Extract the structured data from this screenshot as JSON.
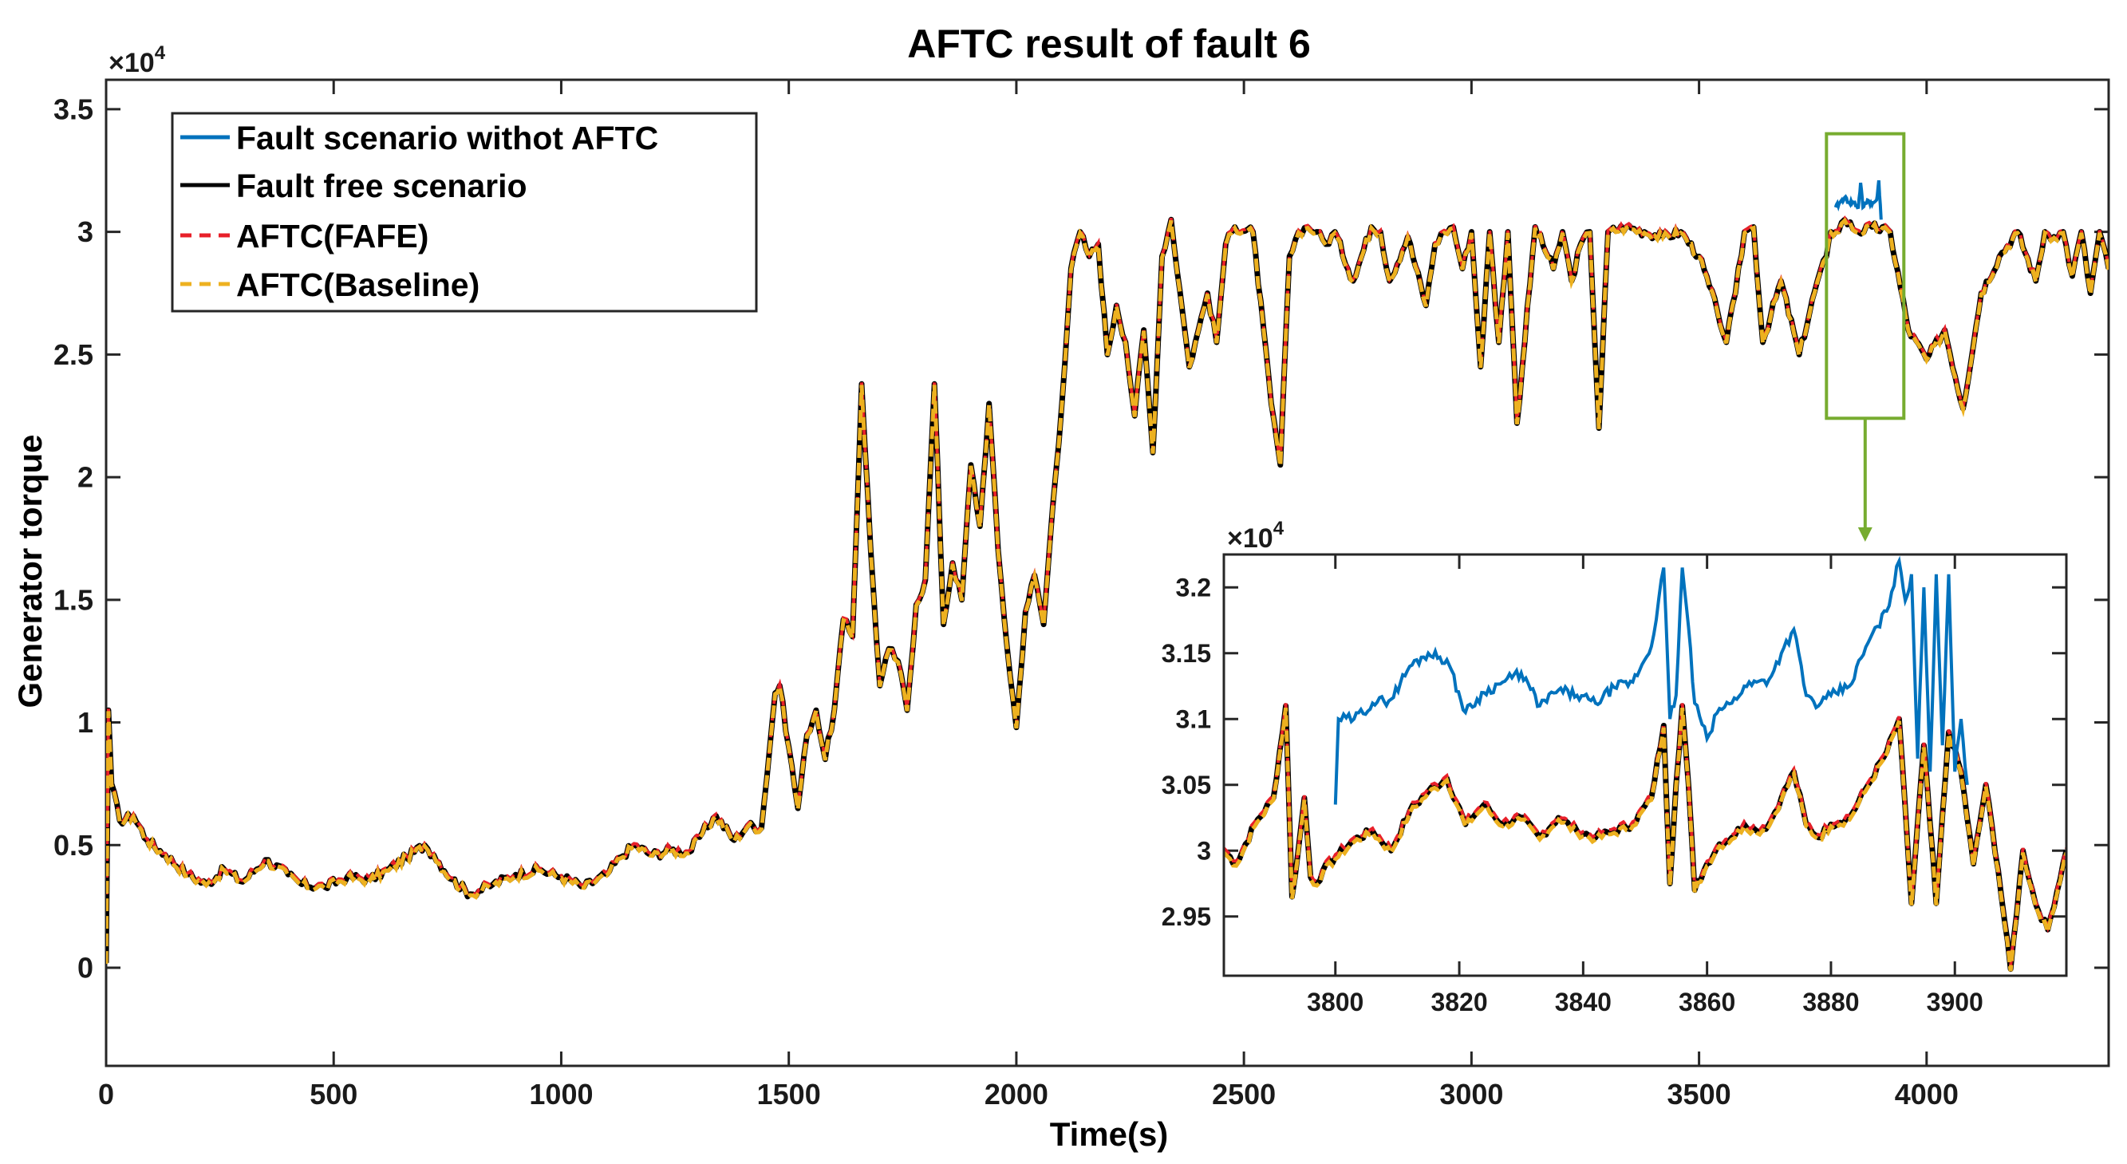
{
  "chart_data": [
    {
      "type": "line",
      "title": "AFTC result of fault 6",
      "xlabel": "Time(s)",
      "ylabel": "Generator torque",
      "exponent_label": "×10",
      "exponent_power": "4",
      "xlim": [
        0,
        4400
      ],
      "ylim": [
        -0.4,
        3.62
      ],
      "x_ticks": [
        0,
        500,
        1000,
        1500,
        2000,
        2500,
        3000,
        3500,
        4000
      ],
      "x_tick_labels": [
        "0",
        "500",
        "1000",
        "1500",
        "2000",
        "2500",
        "3000",
        "3500",
        "4000"
      ],
      "y_ticks": [
        0,
        0.5,
        1,
        1.5,
        2,
        2.5,
        3,
        3.5
      ],
      "y_tick_labels": [
        "0",
        "0.5",
        "1",
        "1.5",
        "2",
        "2.5",
        "3",
        "3.5"
      ],
      "legend": {
        "location": "top-left",
        "entries": [
          {
            "name": "Fault scenario withot AFTC",
            "color": "#0072BD",
            "style": "solid"
          },
          {
            "name": "Fault free scenario",
            "color": "#000000",
            "style": "solid"
          },
          {
            "name": "AFTC(FAFE)",
            "color": "#E8202A",
            "style": "dashed"
          },
          {
            "name": "AFTC(Baseline)",
            "color": "#EDB120",
            "style": "dashed"
          }
        ]
      },
      "zoom_box": {
        "x_range": [
          3780,
          3950
        ],
        "y_range": [
          2.24,
          3.4
        ],
        "color": "#77AC30"
      },
      "series": [
        {
          "name": "Fault free scenario",
          "x": [
            0,
            5,
            12,
            30,
            60,
            90,
            130,
            180,
            220,
            260,
            300,
            350,
            400,
            430,
            480,
            530,
            580,
            620,
            660,
            700,
            720,
            760,
            800,
            850,
            900,
            950,
            1000,
            1050,
            1100,
            1130,
            1160,
            1200,
            1240,
            1280,
            1310,
            1340,
            1380,
            1410,
            1440,
            1470,
            1480,
            1500,
            1520,
            1540,
            1560,
            1580,
            1600,
            1620,
            1640,
            1660,
            1680,
            1700,
            1720,
            1740,
            1760,
            1780,
            1800,
            1820,
            1840,
            1860,
            1880,
            1900,
            1920,
            1940,
            1960,
            1980,
            2000,
            2020,
            2040,
            2060,
            2080,
            2100,
            2120,
            2140,
            2160,
            2180,
            2200,
            2220,
            2240,
            2260,
            2280,
            2300,
            2320,
            2340,
            2360,
            2380,
            2400,
            2420,
            2440,
            2460,
            2480,
            2520,
            2560,
            2580,
            2600,
            2620,
            2640,
            2660,
            2680,
            2700,
            2740,
            2780,
            2800,
            2820,
            2860,
            2900,
            2920,
            2940,
            2960,
            2980,
            3000,
            3020,
            3040,
            3060,
            3080,
            3100,
            3140,
            3180,
            3200,
            3220,
            3240,
            3260,
            3280,
            3300,
            3340,
            3380,
            3420,
            3460,
            3500,
            3540,
            3560,
            3580,
            3600,
            3620,
            3640,
            3680,
            3720,
            3760,
            3780,
            3790,
            3800,
            3820,
            3850,
            3880,
            3920,
            3960,
            4000,
            4040,
            4080,
            4120,
            4160,
            4200,
            4240,
            4260,
            4280,
            4300,
            4320,
            4340,
            4360,
            4380,
            4400
          ],
          "y": [
            0.02,
            1.05,
            0.75,
            0.6,
            0.62,
            0.52,
            0.46,
            0.38,
            0.34,
            0.4,
            0.35,
            0.44,
            0.38,
            0.34,
            0.33,
            0.37,
            0.36,
            0.4,
            0.45,
            0.5,
            0.46,
            0.36,
            0.3,
            0.34,
            0.38,
            0.4,
            0.37,
            0.33,
            0.38,
            0.45,
            0.5,
            0.46,
            0.48,
            0.47,
            0.55,
            0.62,
            0.52,
            0.58,
            0.57,
            1.12,
            1.15,
            0.9,
            0.65,
            0.95,
            1.05,
            0.85,
            1.05,
            1.42,
            1.35,
            2.38,
            1.7,
            1.15,
            1.3,
            1.25,
            1.05,
            1.48,
            1.58,
            2.38,
            1.4,
            1.65,
            1.5,
            2.05,
            1.8,
            2.3,
            1.7,
            1.3,
            0.98,
            1.45,
            1.6,
            1.4,
            1.88,
            2.3,
            2.85,
            3.0,
            2.9,
            2.95,
            2.5,
            2.7,
            2.55,
            2.25,
            2.6,
            2.1,
            2.9,
            3.05,
            2.75,
            2.45,
            2.6,
            2.75,
            2.55,
            2.95,
            3.02,
            3.0,
            2.3,
            2.05,
            2.9,
            3.0,
            3.02,
            3.0,
            2.95,
            3.0,
            2.8,
            3.02,
            3.0,
            2.8,
            2.98,
            2.7,
            2.95,
            3.0,
            3.02,
            2.85,
            3.0,
            2.45,
            3.0,
            2.55,
            3.0,
            2.22,
            3.02,
            2.85,
            3.0,
            2.8,
            2.95,
            3.0,
            2.2,
            3.0,
            3.02,
            3.0,
            2.98,
            3.0,
            2.9,
            2.68,
            2.55,
            2.75,
            3.0,
            3.02,
            2.55,
            2.8,
            2.5,
            2.8,
            2.9,
            3.0,
            3.0,
            3.05,
            3.0,
            3.02,
            3.0,
            2.6,
            2.48,
            2.6,
            2.28,
            2.75,
            2.9,
            3.0,
            2.8,
            3.0,
            2.98,
            3.0,
            2.82,
            3.0,
            2.75,
            3.0,
            2.85
          ]
        },
        {
          "name": "Fault scenario withot AFTC",
          "x": [
            3800,
            3810,
            3820,
            3830,
            3840,
            3850,
            3855,
            3860,
            3870,
            3880,
            3890,
            3895,
            3900
          ],
          "y": [
            3.1,
            3.12,
            3.14,
            3.12,
            3.12,
            3.1,
            3.2,
            3.1,
            3.13,
            3.11,
            3.13,
            3.21,
            3.05
          ]
        }
      ]
    },
    {
      "type": "line",
      "title": "",
      "xlabel": "",
      "ylabel": "",
      "exponent_label": "×10",
      "exponent_power": "4",
      "xlim": [
        3782,
        3918
      ],
      "ylim": [
        2.905,
        3.225
      ],
      "x_ticks": [
        3800,
        3820,
        3840,
        3860,
        3880,
        3900
      ],
      "x_tick_labels": [
        "3800",
        "3820",
        "3840",
        "3860",
        "3880",
        "3900"
      ],
      "y_ticks": [
        2.95,
        3.0,
        3.05,
        3.1,
        3.15,
        3.2
      ],
      "y_tick_labels": [
        "2.95",
        "3",
        "3.05",
        "3.1",
        "3.15",
        "3.2"
      ],
      "series": [
        {
          "name": "Fault scenario withot AFTC",
          "x": [
            3800,
            3800.5,
            3803,
            3806,
            3809,
            3812,
            3815,
            3818,
            3821,
            3824,
            3827,
            3830,
            3833,
            3836,
            3839,
            3842,
            3845,
            3848,
            3851,
            3853,
            3854,
            3855,
            3856,
            3857,
            3858,
            3860,
            3862,
            3864,
            3866,
            3868,
            3870,
            3872,
            3874,
            3876,
            3878,
            3880,
            3883,
            3886,
            3889,
            3891,
            3892,
            3893,
            3894,
            3895,
            3896,
            3897,
            3898,
            3899,
            3900,
            3901,
            3902
          ],
          "y": [
            3.035,
            3.1,
            3.1,
            3.112,
            3.115,
            3.14,
            3.15,
            3.145,
            3.105,
            3.12,
            3.128,
            3.135,
            3.11,
            3.122,
            3.118,
            3.112,
            3.124,
            3.128,
            3.155,
            3.215,
            3.1,
            3.118,
            3.215,
            3.17,
            3.112,
            3.085,
            3.108,
            3.112,
            3.125,
            3.128,
            3.13,
            3.15,
            3.168,
            3.118,
            3.11,
            3.118,
            3.125,
            3.158,
            3.182,
            3.22,
            3.19,
            3.21,
            3.07,
            3.2,
            3.06,
            3.21,
            3.08,
            3.21,
            3.06,
            3.1,
            3.05
          ]
        },
        {
          "name": "Fault free scenario",
          "x": [
            3782,
            3784,
            3787,
            3790,
            3792,
            3793,
            3794,
            3795,
            3796,
            3797,
            3798,
            3800,
            3803,
            3806,
            3809,
            3812,
            3815,
            3818,
            3821,
            3824,
            3827,
            3830,
            3833,
            3836,
            3839,
            3842,
            3845,
            3848,
            3851,
            3853,
            3854,
            3855,
            3856,
            3857,
            3858,
            3860,
            3862,
            3864,
            3866,
            3868,
            3870,
            3872,
            3874,
            3876,
            3878,
            3880,
            3883,
            3886,
            3889,
            3891,
            3893,
            3895,
            3897,
            3899,
            3901,
            3903,
            3905,
            3907,
            3909,
            3911,
            3913,
            3915,
            3918
          ],
          "y": [
            3.0,
            2.99,
            3.02,
            3.04,
            3.11,
            2.965,
            3.0,
            3.04,
            2.98,
            2.975,
            2.985,
            2.995,
            3.008,
            3.015,
            3.0,
            3.03,
            3.045,
            3.055,
            3.02,
            3.035,
            3.02,
            3.025,
            3.01,
            3.025,
            3.015,
            3.01,
            3.015,
            3.02,
            3.04,
            3.095,
            2.975,
            3.05,
            3.11,
            3.05,
            2.97,
            2.99,
            3.005,
            3.01,
            3.02,
            3.015,
            3.02,
            3.04,
            3.06,
            3.02,
            3.01,
            3.02,
            3.025,
            3.05,
            3.075,
            3.1,
            2.96,
            3.08,
            2.96,
            3.09,
            3.06,
            2.99,
            3.05,
            2.985,
            2.91,
            3.0,
            2.96,
            2.94,
            3.0
          ]
        }
      ]
    }
  ]
}
